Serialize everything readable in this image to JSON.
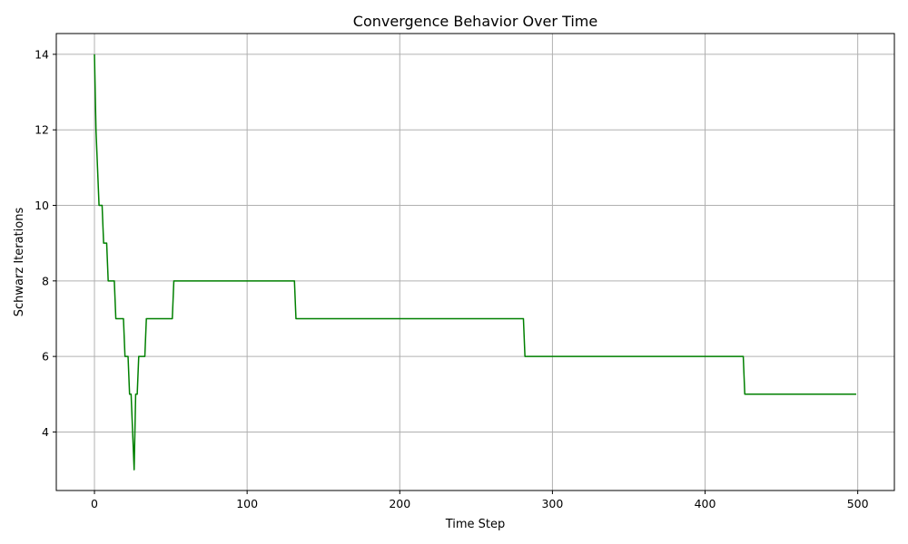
{
  "chart_data": {
    "type": "line",
    "title": "Convergence Behavior Over Time",
    "xlabel": "Time Step",
    "ylabel": "Schwarz Iterations",
    "xlim": [
      -25,
      524
    ],
    "ylim": [
      2.45,
      14.55
    ],
    "xticks": [
      0,
      100,
      200,
      300,
      400,
      500
    ],
    "yticks": [
      4,
      6,
      8,
      10,
      12,
      14
    ],
    "grid": true,
    "color": "#008000",
    "series": [
      {
        "x": [
          0,
          1,
          2,
          3,
          4,
          5,
          6,
          7,
          8,
          9,
          10,
          11,
          12,
          13,
          14,
          15,
          16,
          17,
          18,
          19,
          20,
          21,
          22,
          23,
          24,
          25,
          26,
          27,
          28,
          29,
          30,
          31,
          32,
          33,
          34,
          35,
          36,
          50,
          51,
          52,
          53,
          54,
          130,
          131,
          132,
          133,
          134,
          280,
          281,
          282,
          283,
          424,
          425,
          426,
          427,
          499
        ],
        "y": [
          14,
          12,
          11,
          10,
          10,
          10,
          9,
          9,
          9,
          8,
          8,
          8,
          8,
          8,
          7,
          7,
          7,
          7,
          7,
          7,
          6,
          6,
          6,
          5,
          5,
          4,
          3,
          5,
          5,
          6,
          6,
          6,
          6,
          6,
          7,
          7,
          7,
          7,
          7,
          8,
          8,
          8,
          8,
          8,
          7,
          7,
          7,
          7,
          7,
          6,
          6,
          6,
          6,
          5,
          5,
          5
        ]
      }
    ]
  }
}
